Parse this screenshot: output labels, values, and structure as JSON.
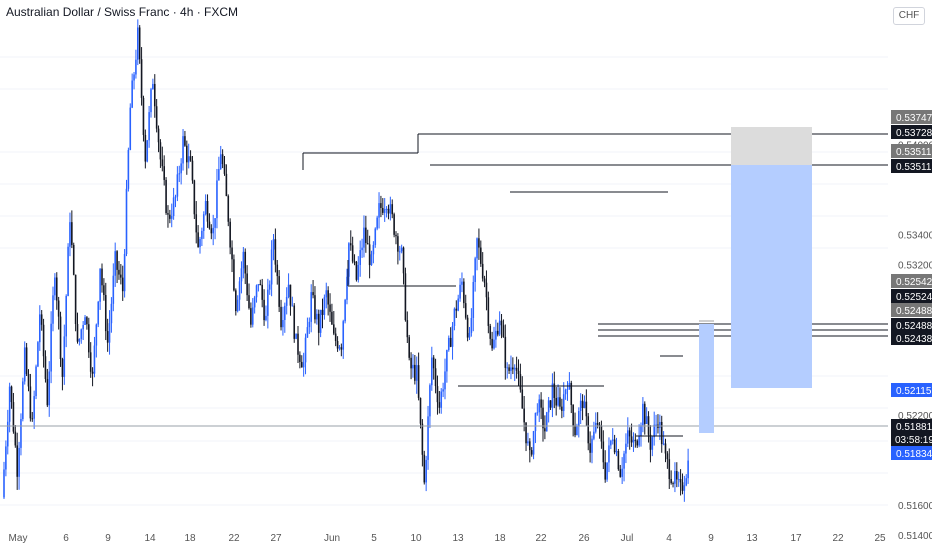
{
  "header": {
    "title": "Australian Dollar / Swiss Franc · 4h · FXCM",
    "symbol": "AUDCHF",
    "currency": "CHF"
  },
  "colors": {
    "up": "#2962ff",
    "down": "#131722",
    "grid": "#f0f3fa",
    "axis_text": "#555555",
    "zone_stop": "#dcdcdc",
    "zone_target": "#b4cdff",
    "label_dark": "#131722",
    "label_grey": "#777777",
    "label_blue": "#2962ff"
  },
  "chart_data": {
    "type": "candlestick",
    "title": "Australian Dollar / Swiss Franc · 4h · FXCM",
    "ylim": [
      0.513,
      0.5496
    ],
    "y_ticks": [
      "0.54200",
      "0.54000",
      "0.53400",
      "0.53200",
      "0.53000",
      "0.52200",
      "0.52000",
      "0.51600",
      "0.51400"
    ],
    "x_ticks": [
      "May",
      "6",
      "9",
      "14",
      "18",
      "22",
      "27",
      "Jun",
      "5",
      "10",
      "13",
      "18",
      "22",
      "26",
      "Jul",
      "4",
      "9",
      "13",
      "17",
      "22",
      "25"
    ],
    "path_levels": [
      0.5165,
      0.524,
      0.5185,
      0.5258,
      0.5212,
      0.5288,
      0.523,
      0.5318,
      0.5246,
      0.5353,
      0.5264,
      0.529,
      0.5244,
      0.532,
      0.5268,
      0.5322,
      0.5303,
      0.5424,
      0.5472,
      0.5392,
      0.5444,
      0.539,
      0.535,
      0.5364,
      0.5402,
      0.5384,
      0.533,
      0.536,
      0.5342,
      0.5396,
      0.5352,
      0.5294,
      0.5326,
      0.528,
      0.531,
      0.5283,
      0.5338,
      0.5284,
      0.5308,
      0.5267,
      0.5254,
      0.5298,
      0.5278,
      0.53,
      0.527,
      0.5268,
      0.5334,
      0.531,
      0.5341,
      0.532,
      0.5356,
      0.5364,
      0.5345,
      0.5326,
      0.5252,
      0.5247,
      0.5174,
      0.5258,
      0.5226,
      0.5257,
      0.5287,
      0.5308,
      0.5268,
      0.5335,
      0.531,
      0.5262,
      0.5286,
      0.5247,
      0.5258,
      0.5224,
      0.519,
      0.5228,
      0.521,
      0.5237,
      0.5222,
      0.5244,
      0.521,
      0.523,
      0.5198,
      0.5215,
      0.5182,
      0.5208,
      0.5183,
      0.5205,
      0.5199,
      0.5225,
      0.5201,
      0.5218,
      0.519,
      0.5178,
      0.5169,
      0.5188
    ],
    "last_price": 0.51881,
    "last_open": 0.51834,
    "countdown": "03:58:19",
    "price_labels": [
      {
        "value": "0.53747",
        "style": "grey"
      },
      {
        "value": "0.53728",
        "style": "dark"
      },
      {
        "value": "0.53511",
        "style": "grey"
      },
      {
        "value": "0.53511",
        "style": "dark"
      },
      {
        "value": "0.52542",
        "style": "grey"
      },
      {
        "value": "0.52524",
        "style": "dark"
      },
      {
        "value": "0.52488",
        "style": "grey"
      },
      {
        "value": "0.52488",
        "style": "dark"
      },
      {
        "value": "0.52438",
        "style": "dark"
      },
      {
        "value": "0.52115",
        "style": "blue"
      },
      {
        "value": "0.51881",
        "style": "dark"
      },
      {
        "value": "0.51834",
        "style": "blue"
      }
    ],
    "annotations": {
      "horizontal_levels": [
        {
          "price": 0.5353,
          "from_date": "Jun 1",
          "to_date": "Jun 10"
        },
        {
          "price": 0.5255,
          "from_date": "Jun 6",
          "to_date": "Jun 14"
        },
        {
          "price": 0.5216,
          "from_date": "Jun 14",
          "to_date": "Jun 26"
        },
        {
          "price": 0.5336,
          "from_date": "Jun 18",
          "to_date": "Jul 6"
        },
        {
          "price": 0.5373,
          "from_date": "Jun 10",
          "to_date": "right edge"
        },
        {
          "price": 0.5351,
          "from_date": "Jun 10",
          "to_date": "right edge"
        },
        {
          "price": 0.5249,
          "from_date": "Jun 26",
          "to_date": "right edge"
        },
        {
          "price": 0.5244,
          "from_date": "Jun 26",
          "to_date": "right edge"
        },
        {
          "price": 0.5231,
          "from_date": "Jul 4",
          "to_date": "Jul 6"
        },
        {
          "price": 0.5183,
          "from_date": "Jun 29",
          "to_date": "Jul 5"
        }
      ],
      "projection_box": {
        "price_top": 0.5249,
        "price_bottom": 0.5183
      },
      "position_tool": {
        "entry": 0.53511,
        "stop": 0.53747,
        "target": 0.52115
      }
    }
  }
}
